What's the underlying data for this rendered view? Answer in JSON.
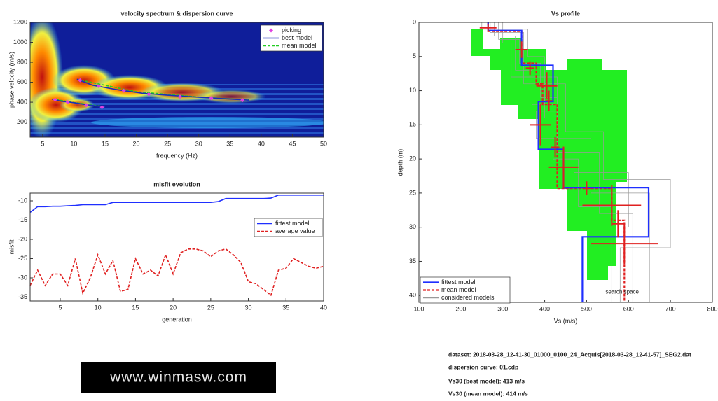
{
  "chart_data": [
    {
      "type": "line",
      "title": "velocity spectrum & dispersion curve",
      "x_label": "frequency (Hz)",
      "y_label": "phase velocity (m/s)",
      "xlim": [
        3,
        50
      ],
      "ylim": [
        50,
        1200
      ],
      "xticks": [
        5,
        10,
        15,
        20,
        25,
        30,
        35,
        40,
        45,
        50
      ],
      "yticks": [
        200,
        400,
        600,
        800,
        1000,
        1200
      ],
      "series": [
        {
          "name": "picking",
          "color": "#e040e0",
          "marker": "diamond",
          "linestyle": "none",
          "x": [
            7,
            9,
            12,
            14.5,
            11,
            14,
            18,
            22,
            27,
            32,
            37
          ],
          "values": [
            425,
            400,
            370,
            350,
            620,
            560,
            515,
            480,
            455,
            440,
            420
          ]
        },
        {
          "name": "best model",
          "color": "#1a2fb8",
          "x": [
            6.5,
            8,
            10,
            12,
            14,
            15,
            null,
            10.5,
            13,
            17,
            21,
            25,
            30,
            34,
            38
          ],
          "values": [
            430,
            410,
            395,
            375,
            360,
            352,
            null,
            630,
            570,
            525,
            490,
            470,
            450,
            435,
            420
          ]
        },
        {
          "name": "mean model",
          "color": "#22cc22",
          "dash": true,
          "x": [
            6.5,
            10,
            15,
            null,
            10.5,
            20,
            30,
            38
          ],
          "values": [
            432,
            397,
            354,
            null,
            628,
            505,
            452,
            422
          ]
        }
      ]
    },
    {
      "type": "line",
      "title": "misfit evolution",
      "x_label": "generation",
      "y_label": "misfit",
      "xlim": [
        1,
        40
      ],
      "ylim": [
        -36,
        -8
      ],
      "xticks": [
        5,
        10,
        15,
        20,
        25,
        30,
        35,
        40
      ],
      "yticks": [
        -35,
        -30,
        -25,
        -20,
        -15,
        -10
      ],
      "series": [
        {
          "name": "fittest model",
          "color": "#1f2fff",
          "x": [
            1,
            2,
            3,
            4,
            5,
            6,
            7,
            8,
            9,
            10,
            11,
            12,
            13,
            14,
            15,
            16,
            17,
            18,
            19,
            20,
            21,
            22,
            23,
            24,
            25,
            26,
            27,
            28,
            29,
            30,
            31,
            32,
            33,
            34,
            35,
            36,
            37,
            38,
            39,
            40
          ],
          "values": [
            -13,
            -11.5,
            -11.5,
            -11.4,
            -11.4,
            -11.3,
            -11.2,
            -11,
            -11,
            -11,
            -11,
            -10.4,
            -10.4,
            -10.4,
            -10.4,
            -10.4,
            -10.4,
            -10.4,
            -10.4,
            -10.4,
            -10.4,
            -10.4,
            -10.4,
            -10.4,
            -10.4,
            -10.2,
            -9.4,
            -9.4,
            -9.4,
            -9.4,
            -9.4,
            -9.4,
            -9.3,
            -8.5,
            -8.5,
            -8.5,
            -8.5,
            -8.5,
            -8.5,
            -8.5
          ]
        },
        {
          "name": "average value",
          "color": "#e02020",
          "dash": true,
          "x": [
            1,
            2,
            3,
            4,
            5,
            6,
            7,
            8,
            9,
            10,
            11,
            12,
            13,
            14,
            15,
            16,
            17,
            18,
            19,
            20,
            21,
            22,
            23,
            24,
            25,
            26,
            27,
            28,
            29,
            30,
            31,
            32,
            33,
            34,
            35,
            36,
            37,
            38,
            39,
            40
          ],
          "values": [
            -32,
            -28,
            -32,
            -29,
            -29,
            -32,
            -25,
            -34,
            -30,
            -24,
            -29,
            -25.5,
            -33.5,
            -33,
            -25,
            -29,
            -28,
            -29.5,
            -24,
            -29,
            -23.5,
            -22.5,
            -22.5,
            -23,
            -24.5,
            -23,
            -22.5,
            -24,
            -26,
            -31,
            -31.5,
            -33,
            -34.5,
            -28,
            -27.5,
            -25,
            -26,
            -27,
            -27.5,
            -27
          ]
        }
      ]
    },
    {
      "type": "line",
      "title": "Vs profile",
      "x_label": "Vs (m/s)",
      "y_label": "depth (m)",
      "y_inverted": true,
      "xlim": [
        100,
        800
      ],
      "ylim": [
        0,
        41
      ],
      "xticks": [
        100,
        200,
        300,
        400,
        500,
        600,
        700,
        800
      ],
      "yticks": [
        0,
        5,
        10,
        15,
        20,
        25,
        30,
        35,
        40
      ],
      "annotation": "search space",
      "series": [
        {
          "name": "fittest model",
          "color": "#1f2fff",
          "width": 2.2,
          "x": [
            265,
            265,
            345,
            345,
            420,
            420,
            385,
            385,
            445,
            445,
            648,
            648,
            490,
            490
          ],
          "values": [
            0,
            1.2,
            1.2,
            6.3,
            6.3,
            11.6,
            11.6,
            18.6,
            18.6,
            24.2,
            24.2,
            31.4,
            31.4,
            41
          ]
        },
        {
          "name": "mean model",
          "color": "#e02020",
          "dash": true,
          "width": 2.2,
          "x": [
            265,
            265,
            345,
            345,
            380,
            380,
            395,
            395,
            430,
            430,
            560,
            560,
            590,
            590
          ],
          "values": [
            0,
            1.3,
            1.3,
            6,
            6,
            9,
            9,
            12,
            12,
            24.3,
            24.3,
            29,
            29,
            41
          ]
        },
        {
          "name": "considered models",
          "color": "#999999",
          "width": 0.7,
          "x": [
            280,
            280,
            330,
            330,
            370,
            370,
            420,
            420,
            480,
            480,
            560,
            560,
            null,
            250,
            250,
            360,
            360,
            400,
            400,
            470,
            470,
            600,
            600,
            520,
            520,
            null,
            300,
            300,
            320,
            320,
            430,
            430,
            380,
            380,
            510,
            510,
            650,
            650,
            null,
            270,
            270,
            350,
            350,
            450,
            450,
            540,
            540,
            700,
            700,
            580,
            580,
            null,
            290,
            290,
            340,
            340,
            390,
            390,
            430,
            430,
            530,
            530,
            610,
            610
          ],
          "values": [
            0,
            2,
            2,
            7,
            7,
            12,
            12,
            20,
            20,
            27,
            27,
            41,
            null,
            0,
            1,
            1,
            5,
            5,
            14,
            14,
            22,
            22,
            30,
            30,
            41,
            null,
            0,
            3,
            3,
            8,
            8,
            13,
            13,
            17,
            17,
            25,
            25,
            41,
            null,
            0,
            1.5,
            1.5,
            9,
            9,
            16,
            16,
            23,
            23,
            33,
            33,
            41,
            null,
            0,
            2.5,
            2.5,
            6,
            6,
            11,
            11,
            19,
            19,
            28,
            28,
            41
          ]
        }
      ],
      "errorbars": {
        "x": [
          265,
          345,
          365,
          405,
          410,
          390,
          425,
          445,
          500,
          560,
          575,
          590
        ],
        "y": [
          0.8,
          4,
          6.7,
          9.3,
          11.5,
          15,
          18.3,
          21.2,
          24.3,
          26.8,
          29.5,
          32.4
        ],
        "xerr": [
          20,
          15,
          10,
          25,
          8,
          25,
          10,
          35,
          10,
          70,
          15,
          80
        ],
        "yerr": [
          0.6,
          1.2,
          1,
          2,
          1.5,
          3,
          1.5,
          3,
          1,
          3,
          2,
          3
        ]
      }
    }
  ],
  "info": [
    "dataset: 2018-03-28_12-41-30_01000_0100_24_Acquis[2018-03-28_12-41-57]_SEG2.dat",
    "dispersion curve: 01.cdp",
    "Vs30 (best model): 413 m/s",
    "Vs30 (mean model): 414 m/s"
  ],
  "logo": "www.winmasw.com"
}
